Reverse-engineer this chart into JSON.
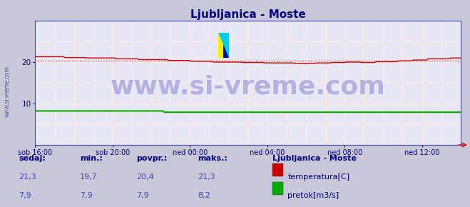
{
  "title": "Ljubljanica - Moste",
  "bg_color": "#c8c8d8",
  "plot_bg_color": "#e8e8f4",
  "title_color": "#000080",
  "grid_color_white": "#ffffff",
  "grid_color_pink": "#ffaaaa",
  "x_labels": [
    "sob 16:00",
    "sob 20:00",
    "ned 00:00",
    "ned 04:00",
    "ned 08:00",
    "ned 12:00"
  ],
  "x_ticks_norm": [
    0.0,
    0.1818,
    0.3636,
    0.5455,
    0.7273,
    0.9091
  ],
  "ylim": [
    0,
    30
  ],
  "yticks": [
    10,
    20
  ],
  "temp_color": "#cc0000",
  "flow_color": "#00aa00",
  "dashed_line_color": "#dd4444",
  "dashed_line_y": 20.4,
  "watermark_text": "www.si-vreme.com",
  "watermark_color": "#3333bb",
  "watermark_alpha": 0.3,
  "watermark_fontsize": 26,
  "ylabel_text": "www.si-vreme.com",
  "ylabel_color": "#4444aa",
  "axis_color": "#4444aa",
  "tick_color": "#000080",
  "footer_label_color": "#000080",
  "footer_value_color": "#4444cc",
  "legend_title": "Ljubljanica - Moste",
  "legend_title_color": "#000080",
  "legend_items": [
    {
      "label": "temperatura[C]",
      "color": "#cc0000"
    },
    {
      "label": "pretok[m3/s]",
      "color": "#00aa00"
    }
  ],
  "footer_headers": [
    "sedaj:",
    "min.:",
    "povpr.:",
    "maks.:"
  ],
  "footer_rows": [
    [
      "21,3",
      "19,7",
      "20,4",
      "21,3"
    ],
    [
      "7,9",
      "7,9",
      "7,9",
      "8,2"
    ]
  ],
  "logo_yellow": "#ffee00",
  "logo_cyan": "#00ccee",
  "logo_blue": "#0000cc",
  "arrow_color": "#cc0000"
}
